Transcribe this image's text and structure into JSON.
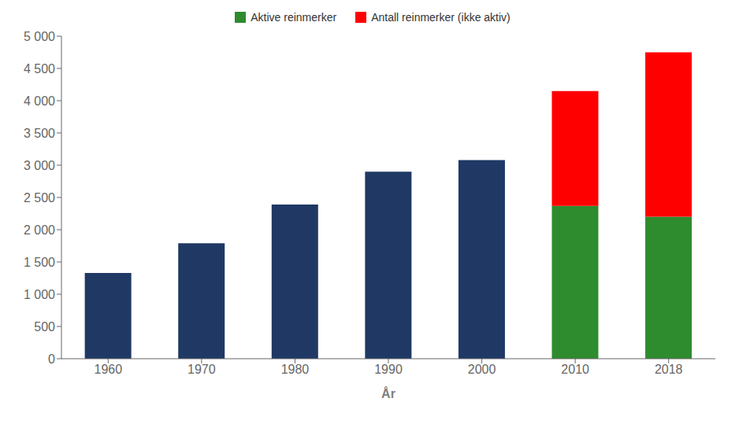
{
  "chart_data": {
    "type": "bar",
    "stacked": true,
    "grid": false,
    "legend": "top",
    "xlabel": "År",
    "categories": [
      "1960",
      "1970",
      "1980",
      "1990",
      "2000",
      "2010",
      "2018"
    ],
    "series": [
      {
        "name": "Aktive reinmerker",
        "color": "#2E8B2E",
        "colors": [
          "#1F3864",
          "#1F3864",
          "#1F3864",
          "#1F3864",
          "#1F3864",
          "#2E8B2E",
          "#2E8B2E"
        ],
        "values": [
          0,
          0,
          0,
          0,
          0,
          2370,
          2200
        ]
      },
      {
        "name": "Antall reinmerker (ikke aktiv)",
        "color": "#FF0000",
        "colors": [
          "#1F3864",
          "#1F3864",
          "#1F3864",
          "#1F3864",
          "#1F3864",
          "#FF0000",
          "#FF0000"
        ],
        "values": [
          1330,
          1790,
          2390,
          2900,
          3080,
          1780,
          2550
        ]
      }
    ],
    "ylim": [
      0,
      5000
    ],
    "yticks": [
      0,
      500,
      {
        "value": 1000,
        "label": "1 000"
      },
      {
        "value": 1500,
        "label": "1 500"
      },
      {
        "value": 2000,
        "label": "2 000"
      },
      {
        "value": 2500,
        "label": "2 500"
      },
      {
        "value": 3000,
        "label": "3 000"
      },
      {
        "value": 3500,
        "label": "3 500"
      },
      {
        "value": 4000,
        "label": "4 000"
      },
      {
        "value": 4500,
        "label": "4 500"
      },
      {
        "value": 5000,
        "label": "5 000"
      }
    ]
  }
}
